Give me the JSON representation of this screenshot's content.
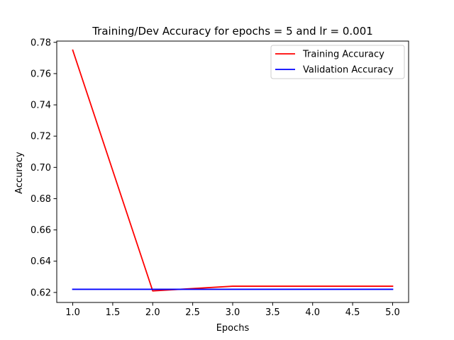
{
  "chart_data": {
    "type": "line",
    "title": "Training/Dev Accuracy for epochs = 5 and lr = 0.001",
    "xlabel": "Epochs",
    "ylabel": "Accuracy",
    "xlim": [
      0.8,
      5.2
    ],
    "ylim": [
      0.6136,
      0.7808
    ],
    "xticks": [
      1.0,
      1.5,
      2.0,
      2.5,
      3.0,
      3.5,
      4.0,
      4.5,
      5.0
    ],
    "xtick_labels": [
      "1.0",
      "1.5",
      "2.0",
      "2.5",
      "3.0",
      "3.5",
      "4.0",
      "4.5",
      "5.0"
    ],
    "yticks": [
      0.62,
      0.64,
      0.66,
      0.68,
      0.7,
      0.72,
      0.74,
      0.76,
      0.78
    ],
    "ytick_labels": [
      "0.62",
      "0.64",
      "0.66",
      "0.68",
      "0.70",
      "0.72",
      "0.74",
      "0.76",
      "0.78"
    ],
    "grid": false,
    "legend_position": "top-right",
    "x": [
      1,
      2,
      3,
      4,
      5
    ],
    "series": [
      {
        "name": "Training Accuracy",
        "color": "#ff0000",
        "values": [
          0.775,
          0.621,
          0.624,
          0.624,
          0.624
        ]
      },
      {
        "name": "Validation Accuracy",
        "color": "#0000ff",
        "values": [
          0.622,
          0.622,
          0.622,
          0.622,
          0.622
        ]
      }
    ]
  }
}
